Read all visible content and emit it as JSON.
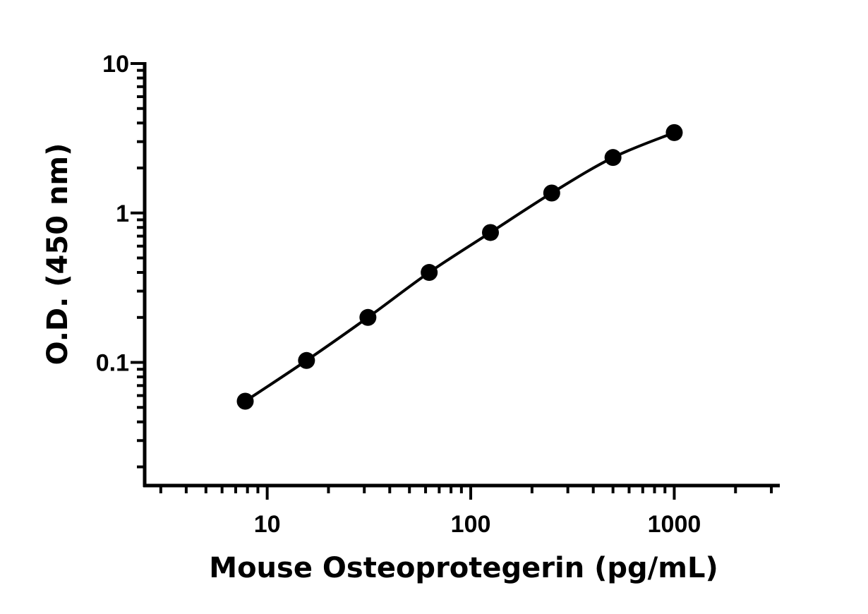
{
  "chart_data": {
    "type": "scatter",
    "title": "",
    "xlabel": "Mouse Osteoprotegerin (pg/mL)",
    "ylabel": "O.D. (450 nm)",
    "x_scale": "log",
    "y_scale": "log",
    "xlim": [
      2.5,
      3300
    ],
    "ylim": [
      0.015,
      10
    ],
    "x_ticks": [
      {
        "value": 10,
        "label": "10"
      },
      {
        "value": 100,
        "label": "100"
      },
      {
        "value": 1000,
        "label": "1000"
      }
    ],
    "y_ticks": [
      {
        "value": 0.1,
        "label": "0.1"
      },
      {
        "value": 1,
        "label": "1"
      },
      {
        "value": 10,
        "label": "10"
      }
    ],
    "grid": false,
    "legend": "none",
    "series": [
      {
        "x": [
          7.8,
          15.6,
          31.25,
          62.5,
          125,
          250,
          500,
          1000
        ],
        "y": [
          0.055,
          0.103,
          0.2,
          0.4,
          0.74,
          1.36,
          2.35,
          3.45
        ],
        "marker": "circle",
        "color": "#000000",
        "fit_line": true
      }
    ]
  }
}
